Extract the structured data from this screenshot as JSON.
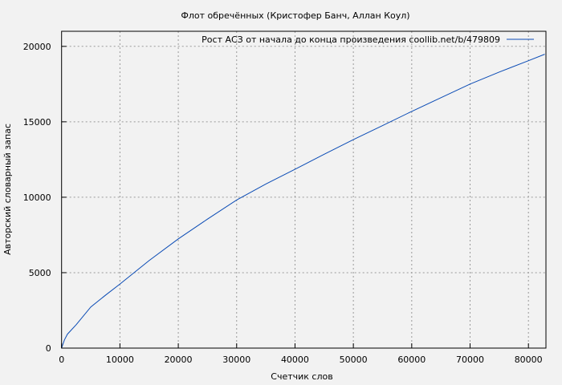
{
  "chart_data": {
    "type": "line",
    "title": "Флот обречённых (Кристофер Банч, Аллан Коул)",
    "xlabel": "Счетчик слов",
    "ylabel": "Авторский словарный запас",
    "xlim": [
      0,
      83000
    ],
    "ylim": [
      0,
      21000
    ],
    "xticks": [
      0,
      10000,
      20000,
      30000,
      40000,
      50000,
      60000,
      70000,
      80000
    ],
    "yticks": [
      0,
      5000,
      10000,
      15000,
      20000
    ],
    "grid": true,
    "legend_position": "top-right",
    "series": [
      {
        "name": "Рост АСЗ от начала до конца произведения  coollib.net/b/479809",
        "color": "#0a4bb5",
        "x": [
          0,
          500,
          1000,
          2500,
          5000,
          7500,
          10000,
          15000,
          20000,
          25000,
          30000,
          35000,
          40000,
          45000,
          50000,
          55000,
          60000,
          65000,
          70000,
          75000,
          80000,
          82800
        ],
        "y": [
          0,
          550,
          925,
          1550,
          2720,
          3500,
          4250,
          5800,
          7240,
          8550,
          9820,
          10880,
          11850,
          12850,
          13820,
          14750,
          15690,
          16600,
          17500,
          18300,
          19050,
          19480
        ]
      }
    ]
  }
}
